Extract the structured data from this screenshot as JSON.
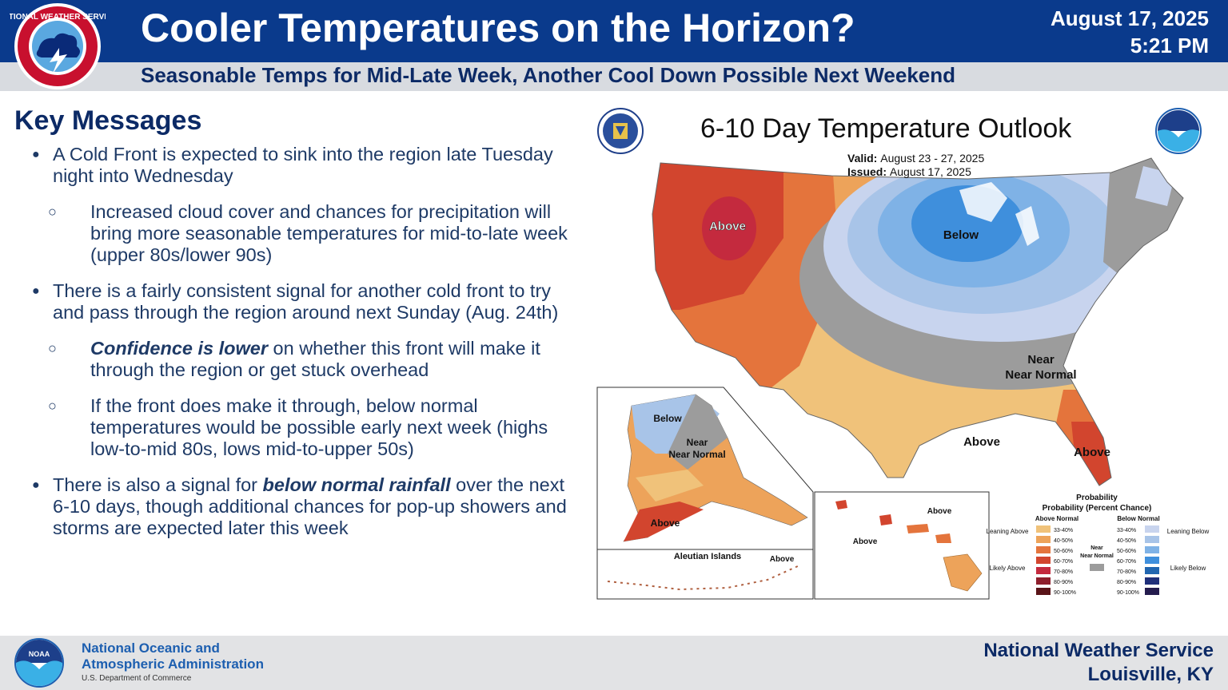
{
  "header": {
    "title": "Cooler Temperatures on the Horizon?",
    "subtitle": "Seasonable Temps for Mid-Late Week, Another Cool Down Possible Next Weekend",
    "date": "August 17, 2025",
    "time": "5:21 PM",
    "logo_text": "NATIONAL WEATHER SERVICE"
  },
  "key_messages": {
    "heading": "Key Messages",
    "b1": "A Cold Front is expected to sink into the region late Tuesday night into Wednesday",
    "b1_sub": "Increased cloud cover and chances for precipitation will bring more seasonable temperatures for mid-to-late week (upper 80s/lower 90s)",
    "b2": "There is a fairly consistent signal for another cold front to try and pass through the region around next Sunday (Aug. 24th)",
    "b2_sub1_em": "Confidence is lower",
    "b2_sub1_rest": " on whether this front will make it through the region or get stuck overhead",
    "b2_sub2": "If the front does make it through, below normal temperatures would be possible early next week (highs low-to-mid 80s, lows mid-to-upper 50s)",
    "b3_pre": "There is also a signal for ",
    "b3_em": "below normal rainfall",
    "b3_post": " over the next 6-10 days, though additional chances for pop-up showers and storms are expected later this week"
  },
  "map": {
    "title": "6-10 Day Temperature Outlook",
    "valid_label": "Valid:",
    "valid_value": "August 23 - 27, 2025",
    "issued_label": "Issued:",
    "issued_value": "August 17, 2025",
    "labels": {
      "above_west": "Above",
      "below_midwest": "Below",
      "near_normal": "Near Normal",
      "above_south": "Above",
      "above_florida": "Above",
      "ak_below": "Below",
      "ak_near": "Near Normal",
      "ak_above": "Above",
      "aleutian_title": "Aleutian Islands",
      "aleutian_above": "Above",
      "hi_above1": "Above",
      "hi_above2": "Above"
    },
    "legend": {
      "title": "Probability (Percent Chance)",
      "above_header": "Above Normal",
      "below_header": "Below Normal",
      "near_label": "Near Normal",
      "leaning_above": "Leaning Above",
      "likely_above": "Likely Above",
      "leaning_below": "Leaning Below",
      "likely_below": "Likely Below",
      "ranges": [
        "33-40%",
        "40-50%",
        "50-60%",
        "60-70%",
        "70-80%",
        "80-90%",
        "90-100%"
      ],
      "above_colors": [
        "#f0c27a",
        "#eda35a",
        "#e4743c",
        "#d2452e",
        "#c42a3e",
        "#8e1f2c",
        "#5a1418"
      ],
      "below_colors": [
        "#c8d4ee",
        "#a8c4e8",
        "#7fb2e6",
        "#3f8fdc",
        "#2166b0",
        "#1f2f7a",
        "#241c4e"
      ],
      "near_color": "#9c9c9c"
    }
  },
  "footer": {
    "org_line1": "National Oceanic and",
    "org_line2": "Atmospheric Administration",
    "org_line3": "U.S. Department of Commerce",
    "nws_line1": "National Weather Service",
    "nws_line2": "Louisville, KY",
    "noaa_logo_text": "NOAA"
  }
}
